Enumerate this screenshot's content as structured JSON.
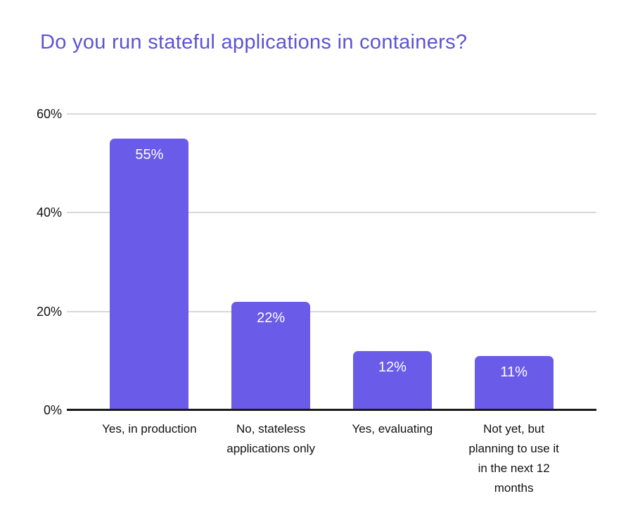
{
  "title": "Do you run stateful applications in containers?",
  "colors": {
    "title_color": "#5B53D8",
    "bar_color": "#6A5CE8",
    "bar_label_color": "#FFFFFF",
    "gridline_color": "#D8D8D8",
    "axis_color": "#1A1A1A",
    "tick_label_color": "#111111",
    "background": "#FFFFFF"
  },
  "chart_data": {
    "type": "bar",
    "title": "Do you run stateful applications in containers?",
    "categories": [
      "Yes, in production",
      "No, stateless applications only",
      "Yes, evaluating",
      "Not yet, but planning to use it in the next 12 months"
    ],
    "category_lines": [
      [
        "Yes, in production"
      ],
      [
        "No, stateless",
        "applications only"
      ],
      [
        "Yes, evaluating"
      ],
      [
        "Not yet, but",
        "planning to use it",
        "in the next 12",
        "months"
      ]
    ],
    "values": [
      55,
      22,
      12,
      11
    ],
    "value_labels": [
      "55%",
      "22%",
      "12%",
      "11%"
    ],
    "value_label_position": "inside-top",
    "xlabel": "",
    "ylabel": "",
    "ylim": [
      0,
      60
    ],
    "yticks": [
      {
        "value": 0,
        "label": "0%"
      },
      {
        "value": 20,
        "label": "20%"
      },
      {
        "value": 40,
        "label": "40%"
      },
      {
        "value": 60,
        "label": "60%"
      }
    ],
    "grid": true,
    "legend": "none"
  }
}
